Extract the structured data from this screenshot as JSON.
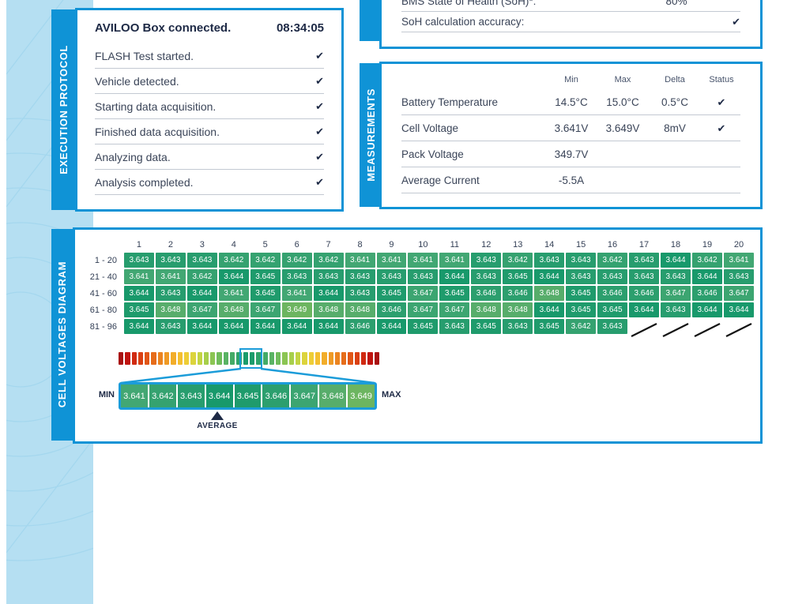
{
  "colors": {
    "accent_blue": "#0f93d6",
    "band_blue": "#b5dff2",
    "navy_text": "#1d2945",
    "body_text": "#3a4458",
    "separator": "#c3c9d2",
    "scale_frame_blue": "#1b9cd9"
  },
  "icons": {
    "check": "✔"
  },
  "execution_protocol": {
    "tab_label": "EXECUTION PROTOCOL",
    "header": {
      "label": "AVILOO Box connected.",
      "time": "08:34:05"
    },
    "steps": [
      {
        "label": "FLASH Test started.",
        "check": true
      },
      {
        "label": "Vehicle detected.",
        "check": true
      },
      {
        "label": "Starting data acquisition.",
        "check": true
      },
      {
        "label": "Finished data acquisition.",
        "check": true
      },
      {
        "label": "Analyzing data.",
        "check": true
      },
      {
        "label": "Analysis completed.",
        "check": true
      }
    ]
  },
  "soh_card": {
    "rows": [
      {
        "label": "BMS State of Health (SoH)*:",
        "value": "80%",
        "check": false
      },
      {
        "label": "SoH calculation accuracy:",
        "value": "",
        "check": true
      }
    ]
  },
  "measurements": {
    "tab_label": "MEASUREMENTS",
    "columns": [
      "Min",
      "Max",
      "Delta",
      "Status"
    ],
    "rows": [
      {
        "label": "Battery Temperature",
        "min": "14.5°C",
        "max": "15.0°C",
        "delta": "0.5°C",
        "check": true
      },
      {
        "label": "Cell Voltage",
        "min": "3.641V",
        "max": "3.649V",
        "delta": "8mV",
        "check": true
      },
      {
        "label": "Pack Voltage",
        "min": "349.7V",
        "max": "",
        "delta": "",
        "check": false
      },
      {
        "label": "Average Current",
        "min": "-5.5A",
        "max": "",
        "delta": "",
        "check": false
      }
    ]
  },
  "cell_voltages": {
    "tab_label": "CELL VOLTAGES DIAGRAM",
    "column_headers": [
      "1",
      "2",
      "3",
      "4",
      "5",
      "6",
      "7",
      "8",
      "9",
      "10",
      "11",
      "12",
      "13",
      "14",
      "15",
      "16",
      "17",
      "18",
      "19",
      "20"
    ],
    "rows": [
      {
        "label": "1 - 20",
        "values": [
          "3.643",
          "3.643",
          "3.643",
          "3.642",
          "3.642",
          "3.642",
          "3.642",
          "3.641",
          "3.641",
          "3.641",
          "3.641",
          "3.643",
          "3.642",
          "3.643",
          "3.643",
          "3.642",
          "3.643",
          "3.644",
          "3.642",
          "3.641"
        ]
      },
      {
        "label": "21 - 40",
        "values": [
          "3.641",
          "3.641",
          "3.642",
          "3.644",
          "3.645",
          "3.643",
          "3.643",
          "3.643",
          "3.643",
          "3.643",
          "3.644",
          "3.643",
          "3.645",
          "3.644",
          "3.643",
          "3.643",
          "3.643",
          "3.643",
          "3.644",
          "3.643"
        ]
      },
      {
        "label": "41 - 60",
        "values": [
          "3.644",
          "3.643",
          "3.644",
          "3.641",
          "3.645",
          "3.641",
          "3.644",
          "3.643",
          "3.645",
          "3.647",
          "3.645",
          "3.646",
          "3.646",
          "3.648",
          "3.645",
          "3.646",
          "3.646",
          "3.647",
          "3.646",
          "3.647"
        ]
      },
      {
        "label": "61 - 80",
        "values": [
          "3.645",
          "3.648",
          "3.647",
          "3.648",
          "3.647",
          "3.649",
          "3.648",
          "3.648",
          "3.646",
          "3.647",
          "3.647",
          "3.648",
          "3.648",
          "3.644",
          "3.645",
          "3.645",
          "3.644",
          "3.643",
          "3.644",
          "3.644"
        ]
      },
      {
        "label": "81 - 96",
        "values": [
          "3.644",
          "3.643",
          "3.644",
          "3.644",
          "3.644",
          "3.644",
          "3.644",
          "3.646",
          "3.644",
          "3.645",
          "3.643",
          "3.645",
          "3.643",
          "3.645",
          "3.642",
          "3.643"
        ],
        "missing": 4
      }
    ],
    "value_colors": {
      "3.641": "#42a773",
      "3.642": "#35a270",
      "3.643": "#279d6e",
      "3.644": "#18996b",
      "3.645": "#1f9b6c",
      "3.646": "#2c9f6e",
      "3.647": "#3ca571",
      "3.648": "#57ad6b",
      "3.649": "#6cb560"
    },
    "scale": {
      "min_label": "MIN",
      "max_label": "MAX",
      "average_label": "AVERAGE",
      "average_value": "3.644",
      "zoom_values": [
        "3.641",
        "3.642",
        "3.643",
        "3.644",
        "3.645",
        "3.646",
        "3.647",
        "3.648",
        "3.649"
      ],
      "bar_colors": [
        "#a91111",
        "#c01410",
        "#d02a12",
        "#da4013",
        "#e15617",
        "#e66d1b",
        "#eb8420",
        "#ef9a25",
        "#f2ad2a",
        "#f4bf30",
        "#eecd36",
        "#dcd43c",
        "#c3d443",
        "#a7cf4b",
        "#8bc553",
        "#70bc5b",
        "#59b363",
        "#44ab67",
        "#2ea46a",
        "#1b9c6b",
        "#1b9c6b",
        "#2ea46a",
        "#44ab67",
        "#59b363",
        "#70bc5b",
        "#8bc553",
        "#a7cf4b",
        "#c3d443",
        "#dcd43c",
        "#eecd36",
        "#f4bf30",
        "#f2ad2a",
        "#ef9a25",
        "#eb8420",
        "#e66d1b",
        "#e15617",
        "#da4013",
        "#d02a12",
        "#c01410",
        "#a91111"
      ]
    }
  }
}
